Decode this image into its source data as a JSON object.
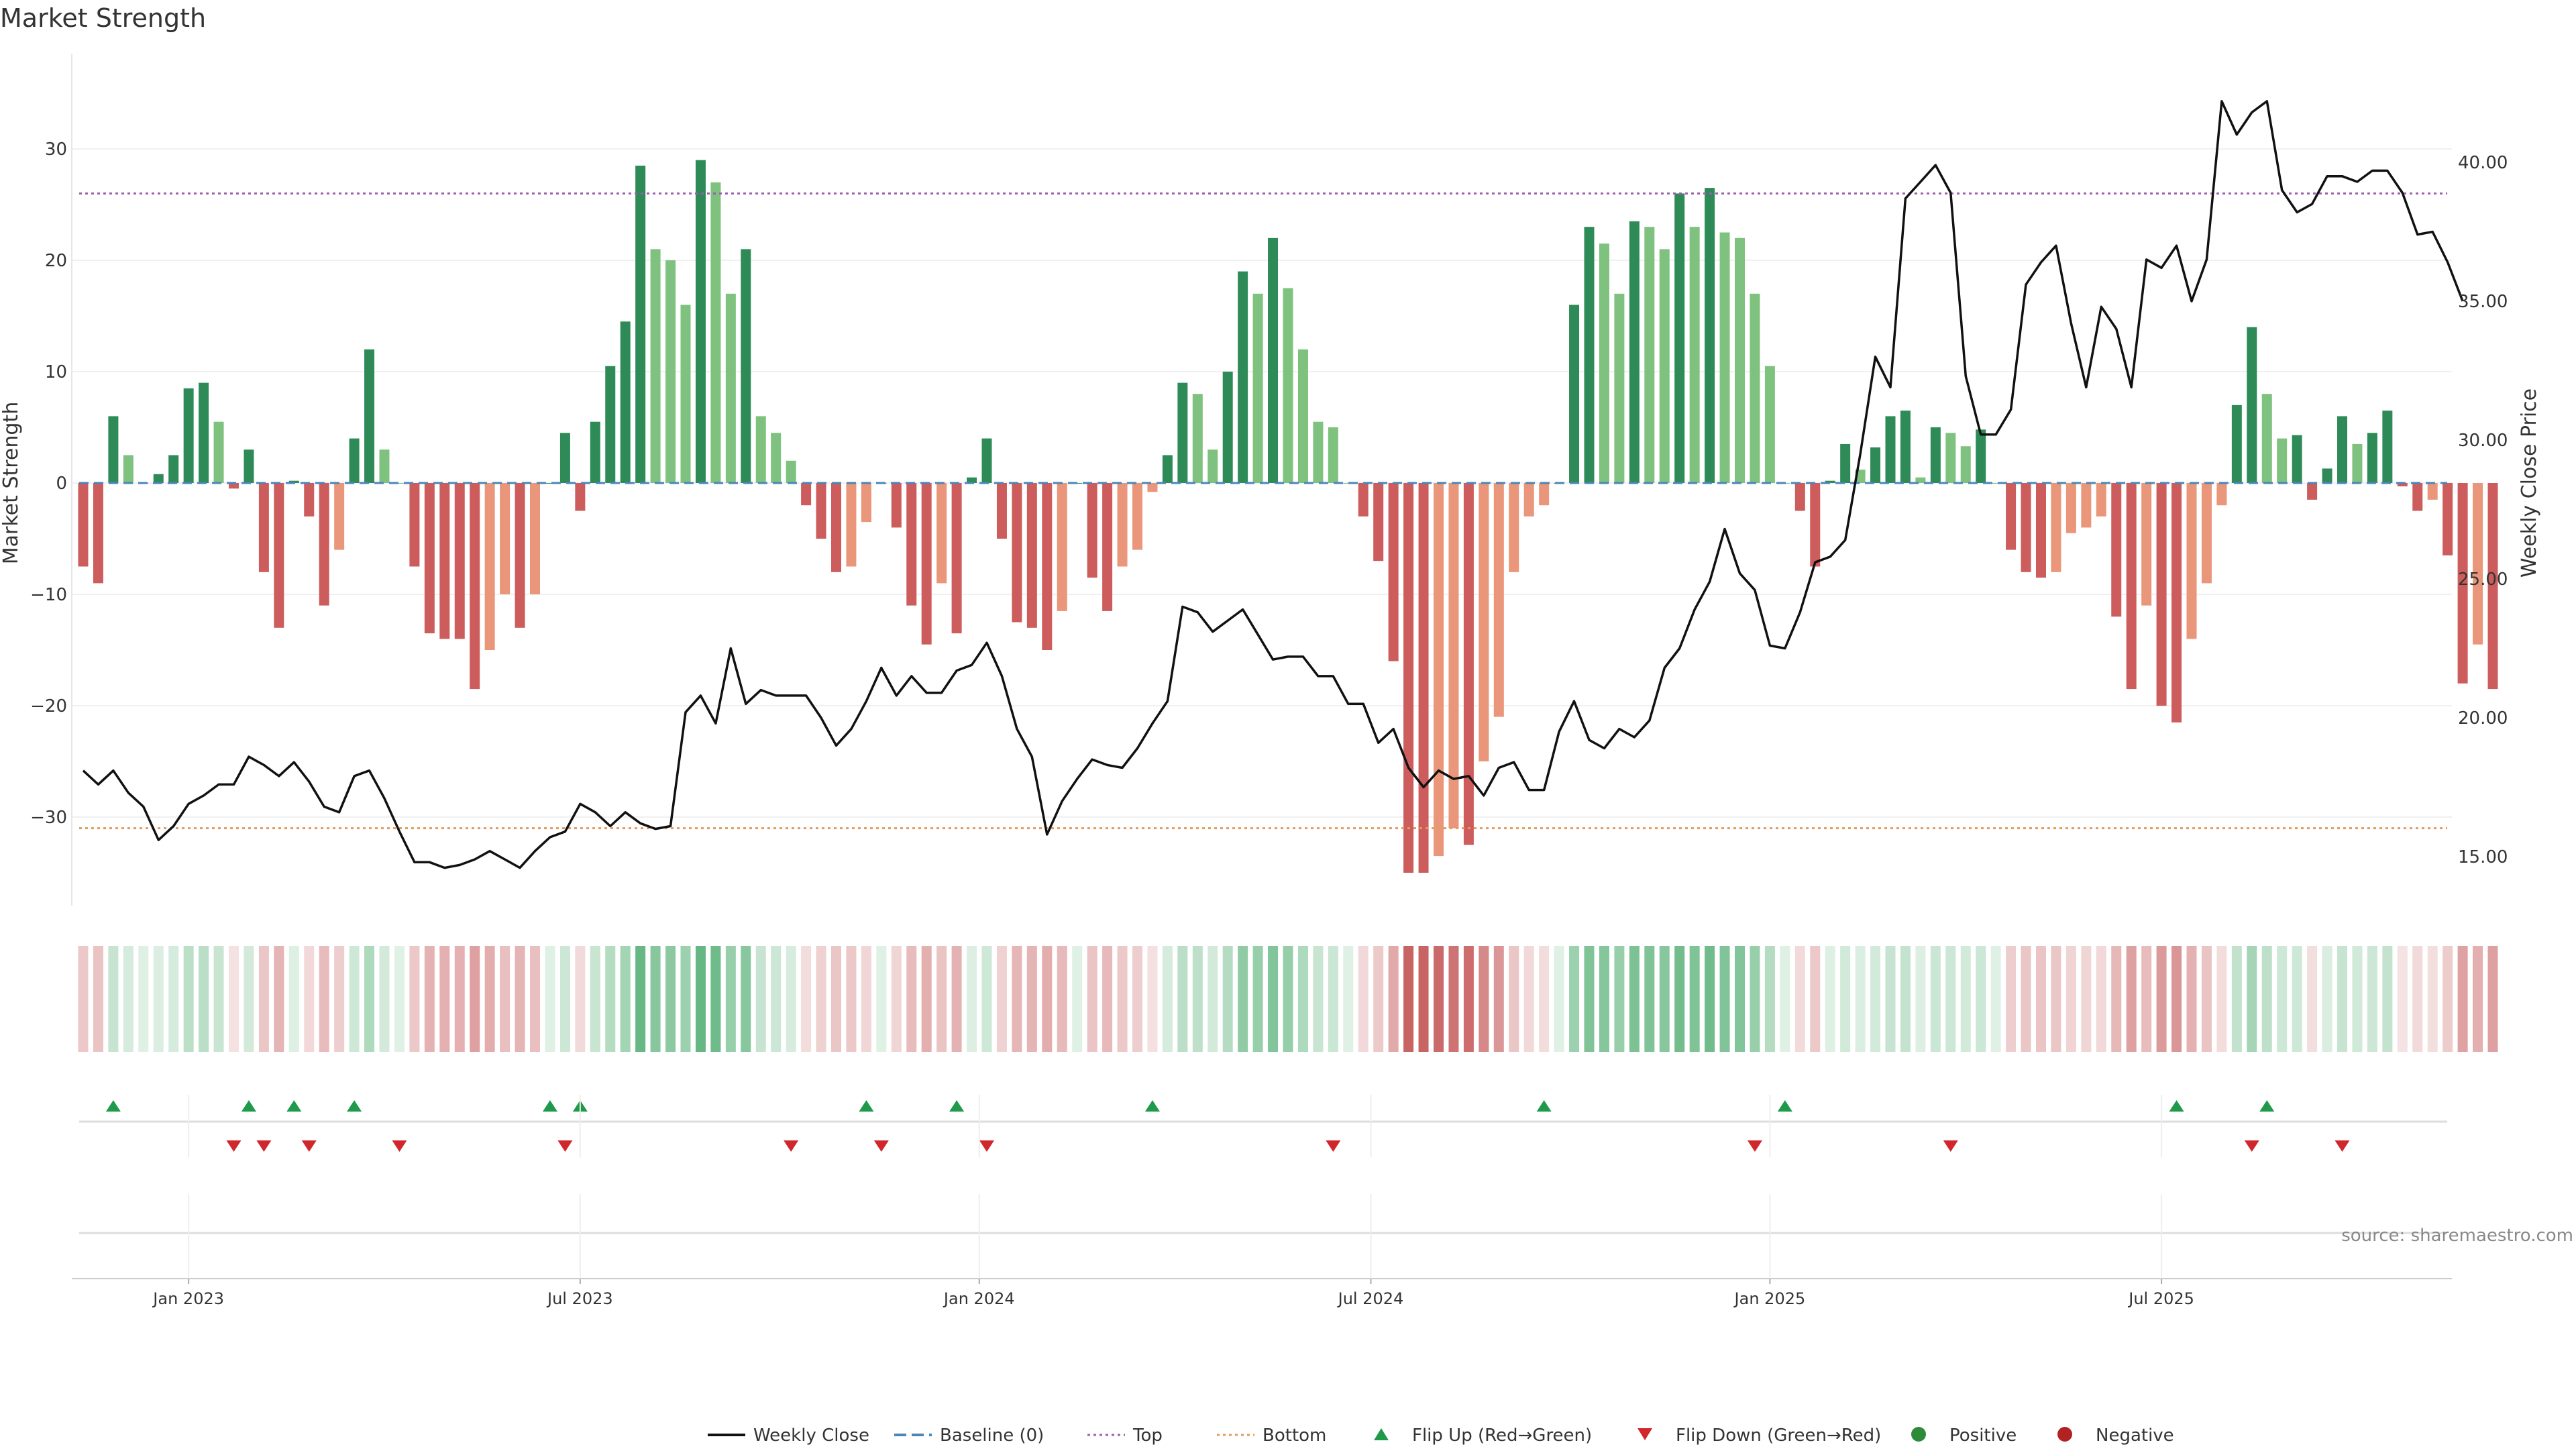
{
  "chart_data": {
    "type": "bar",
    "title": "Market Strength",
    "ylabel_left": "Market Strength",
    "ylabel_right": "Weekly Close Price",
    "source": "source: sharemaestro.com",
    "ylim_left": [
      -38.5,
      38.5
    ],
    "ylim_right": [
      12.5,
      44.5
    ],
    "yticks_left": [
      30,
      20,
      10,
      0,
      -10,
      -20,
      -30
    ],
    "yticks_left_labels": [
      "30",
      "20",
      "10",
      "0",
      "−10",
      "−20",
      "−30"
    ],
    "yticks_right": [
      40,
      35,
      30,
      25,
      20,
      15
    ],
    "yticks_right_labels": [
      "40.00",
      "35.00",
      "30.00",
      "25.00",
      "20.00",
      "15.00"
    ],
    "x_date_ticks": [
      {
        "label": "Jan 2023",
        "week": 7
      },
      {
        "label": "Jul 2023",
        "week": 33
      },
      {
        "label": "Jan 2024",
        "week": 59.5
      },
      {
        "label": "Jul 2024",
        "week": 85.5
      },
      {
        "label": "Jan 2025",
        "week": 112
      },
      {
        "label": "Jul 2025",
        "week": 138
      }
    ],
    "top_line": 26,
    "bottom_line": -31,
    "strength": [
      -7.5,
      -9,
      6,
      2.5,
      0,
      0.8,
      2.5,
      8.5,
      9,
      5.5,
      -0.5,
      3,
      -8,
      -13,
      0.2,
      -3,
      -11,
      -6,
      4,
      12,
      3,
      0,
      -7.5,
      -13.5,
      -14,
      -14,
      -18.5,
      -15,
      -10,
      -13,
      -10,
      0,
      4.5,
      -2.5,
      5.5,
      10.5,
      14.5,
      28.5,
      21,
      20,
      16,
      29,
      27,
      17,
      21,
      6,
      4.5,
      2,
      -2,
      -5,
      -8,
      -7.5,
      -3.5,
      0,
      -4,
      -11,
      -14.5,
      -9,
      -13.5,
      0.5,
      4,
      -5,
      -12.5,
      -13,
      -15,
      -11.5,
      0,
      -8.5,
      -11.5,
      -7.5,
      -6,
      -0.8,
      2.5,
      9,
      8,
      3,
      10,
      19,
      17,
      22,
      17.5,
      12,
      5.5,
      5,
      0,
      -3,
      -7,
      -16,
      -35,
      -35,
      -33.5,
      -31,
      -32.5,
      -25,
      -21,
      -8,
      -3,
      -2,
      0,
      16,
      23,
      21.5,
      17,
      23.5,
      23,
      21,
      26,
      23,
      26.5,
      22.5,
      22,
      17,
      10.5,
      0,
      -2.5,
      -7.5,
      0.2,
      3.5,
      1.2,
      3.2,
      6,
      6.5,
      0.5,
      5,
      4.5,
      3.3,
      4.8,
      0,
      -6,
      -8,
      -8.5,
      -8,
      -4.5,
      -4,
      -3,
      -12,
      -18.5,
      -11,
      -20,
      -21.5,
      -14,
      -9,
      -2,
      7,
      14,
      8,
      4,
      4.3,
      -1.5,
      1.3,
      6,
      3.5,
      4.5,
      6.5,
      -0.3,
      -2.5,
      -1.5,
      -6.5,
      -18,
      -14.5,
      -18.5
    ],
    "weekly_close": [
      18.1,
      17.6,
      18.1,
      17.3,
      16.8,
      15.6,
      16.1,
      16.9,
      17.2,
      17.6,
      17.6,
      18.6,
      18.3,
      17.9,
      18.4,
      17.7,
      16.8,
      16.6,
      17.9,
      18.1,
      17.1,
      15.9,
      14.8,
      14.8,
      14.6,
      14.7,
      14.9,
      15.2,
      14.9,
      14.6,
      15.2,
      15.7,
      15.9,
      16.9,
      16.6,
      16.1,
      16.6,
      16.2,
      16.0,
      16.1,
      20.2,
      20.8,
      19.8,
      22.5,
      20.5,
      21.0,
      20.8,
      20.8,
      20.8,
      20.0,
      19.0,
      19.6,
      20.6,
      21.8,
      20.8,
      21.5,
      20.9,
      20.9,
      21.7,
      21.9,
      22.7,
      21.5,
      19.6,
      18.6,
      15.8,
      17.0,
      17.8,
      18.5,
      18.3,
      18.2,
      18.9,
      19.8,
      20.6,
      24.0,
      23.8,
      23.1,
      23.5,
      23.9,
      23.0,
      22.1,
      22.2,
      22.2,
      21.5,
      21.5,
      20.5,
      20.5,
      19.1,
      19.6,
      18.2,
      17.5,
      18.1,
      17.8,
      17.9,
      17.2,
      18.2,
      18.4,
      17.4,
      17.4,
      19.5,
      20.6,
      19.2,
      18.9,
      19.6,
      19.3,
      19.9,
      21.8,
      22.5,
      23.9,
      24.9,
      26.8,
      25.2,
      24.6,
      22.6,
      22.5,
      23.8,
      25.6,
      25.8,
      26.4,
      29.5,
      33.0,
      31.9,
      38.7,
      39.3,
      39.9,
      38.9,
      32.3,
      30.2,
      30.2,
      31.1,
      35.6,
      36.4,
      37.0,
      34.2,
      31.9,
      34.8,
      34.0,
      31.9,
      36.5,
      36.2,
      37.0,
      35.0,
      36.5,
      42.2,
      41.0,
      41.8,
      42.2,
      39.0,
      38.2,
      38.5,
      39.5,
      39.5,
      39.3,
      39.7,
      39.7,
      38.9,
      37.4,
      37.5,
      36.4,
      35.0
    ],
    "heat_strip": "daily market strength shading row",
    "flip_up_weeks": [
      2,
      11,
      14,
      18,
      31,
      33,
      52,
      58,
      71,
      97,
      113,
      139,
      145
    ],
    "flip_down_weeks": [
      10,
      12,
      15,
      21,
      32,
      47,
      53,
      60,
      83,
      111,
      124,
      144,
      150
    ],
    "legend": [
      {
        "label": "Weekly Close",
        "kind": "line-solid",
        "color": "#111111"
      },
      {
        "label": "Baseline (0)",
        "kind": "line-dashed",
        "color": "#4a86b8"
      },
      {
        "label": "Top",
        "kind": "line-dotted",
        "color": "#a05db0"
      },
      {
        "label": "Bottom",
        "kind": "line-dotted",
        "color": "#e39a5e"
      },
      {
        "label": "Flip Up (Red→Green)",
        "kind": "triangle-up",
        "color": "#1f9a4a"
      },
      {
        "label": "Flip Down (Green→Red)",
        "kind": "triangle-down",
        "color": "#d0262c"
      },
      {
        "label": "Positive",
        "kind": "dot",
        "color": "#2e8b3a"
      },
      {
        "label": "Negative",
        "kind": "dot",
        "color": "#b22222"
      }
    ],
    "colors": {
      "pos_strong": "#2e8b57",
      "pos_light": "#7fc17f",
      "neg_strong": "#cd5c5c",
      "neg_light": "#e9967a",
      "close_line": "#111111",
      "baseline": "#4a86b8",
      "top": "#a05db0",
      "bottom": "#e39a5e"
    }
  }
}
